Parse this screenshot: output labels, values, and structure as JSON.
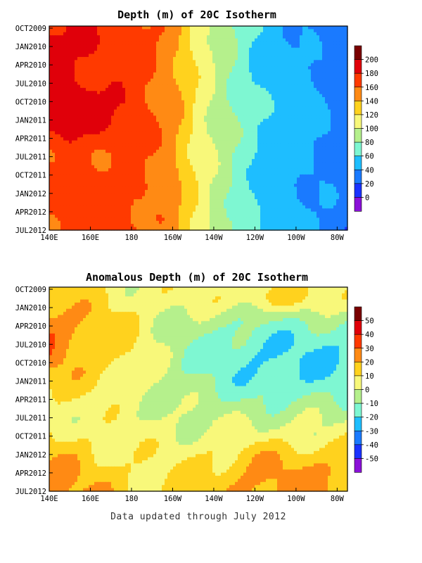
{
  "footer": "Data updated through July 2012",
  "chart_data": [
    {
      "type": "heatmap",
      "title": "Depth (m) of 20C Isotherm",
      "x_ticks": [
        "140E",
        "160E",
        "180",
        "160W",
        "140W",
        "120W",
        "100W",
        "80W"
      ],
      "x_tick_lon": [
        140,
        160,
        180,
        200,
        220,
        240,
        260,
        280
      ],
      "y_ticks": [
        "OCT2009",
        "JAN2010",
        "APR2010",
        "JUL2010",
        "OCT2010",
        "JAN2011",
        "APR2011",
        "JUL2011",
        "OCT2011",
        "JAN2012",
        "APR2012",
        "JUL2012"
      ],
      "y_range_months": [
        0,
        33
      ],
      "colorbar": {
        "labels": [
          "200",
          "180",
          "160",
          "140",
          "120",
          "100",
          "80",
          "60",
          "40",
          "20",
          "0"
        ],
        "levels": [
          200,
          180,
          160,
          140,
          120,
          100,
          80,
          60,
          40,
          20,
          0
        ],
        "colors": [
          "#7a0000",
          "#e0000a",
          "#ff3a00",
          "#ff8a14",
          "#ffd21e",
          "#f8f87a",
          "#b5f08c",
          "#7ef7d2",
          "#1ebeff",
          "#1a7aff",
          "#1a32ff",
          "#8a10d8"
        ]
      },
      "profile": {
        "lon": [
          140,
          150,
          160,
          170,
          180,
          190,
          200,
          210,
          220,
          230,
          240,
          250,
          260,
          270,
          280,
          285
        ],
        "depth": [
          175,
          178,
          176,
          172,
          168,
          160,
          148,
          120,
          98,
          78,
          60,
          52,
          45,
          40,
          34,
          30
        ]
      }
    },
    {
      "type": "heatmap",
      "title": "Anomalous Depth (m) of 20C Isotherm",
      "x_ticks": [
        "140E",
        "160E",
        "180",
        "160W",
        "140W",
        "120W",
        "100W",
        "80W"
      ],
      "x_tick_lon": [
        140,
        160,
        180,
        200,
        220,
        240,
        260,
        280
      ],
      "y_ticks": [
        "OCT2009",
        "JAN2010",
        "APR2010",
        "JUL2010",
        "OCT2010",
        "JAN2011",
        "APR2011",
        "JUL2011",
        "OCT2011",
        "JAN2012",
        "APR2012",
        "JUL2012"
      ],
      "y_range_months": [
        0,
        33
      ],
      "colorbar": {
        "labels": [
          "50",
          "40",
          "30",
          "20",
          "10",
          "0",
          "-10",
          "-20",
          "-30",
          "-40",
          "-50"
        ],
        "levels": [
          50,
          40,
          30,
          20,
          10,
          0,
          -10,
          -20,
          -30,
          -40,
          -50
        ],
        "colors": [
          "#7a0000",
          "#e0000a",
          "#ff3a00",
          "#ff8a14",
          "#ffd21e",
          "#f8f87a",
          "#b5f08c",
          "#7ef7d2",
          "#1ebeff",
          "#1a7aff",
          "#1a32ff",
          "#8a10d8"
        ]
      }
    }
  ]
}
